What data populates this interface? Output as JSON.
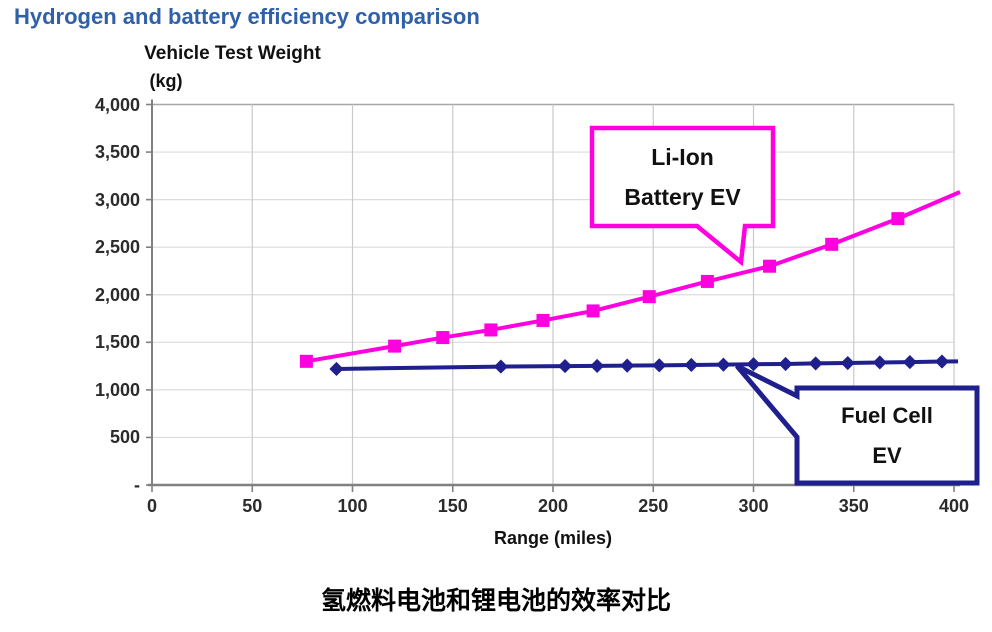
{
  "page_title": "Hydrogen and battery efficiency comparison",
  "caption": "氢燃料电池和锂电池的效率对比",
  "chart_data": {
    "type": "line",
    "title": "Hydrogen and battery efficiency comparison",
    "grid": true,
    "background": "#ffffff",
    "x_axis": {
      "label": "Range (miles)",
      "min": 0,
      "max": 400,
      "step": 50,
      "tick_labels": [
        "0",
        "50",
        "100",
        "150",
        "200",
        "250",
        "300",
        "350",
        "400"
      ]
    },
    "y_axis": {
      "label_line1": "Vehicle Test Weight",
      "label_line2": "(kg)",
      "min": 0,
      "max": 4000,
      "step": 500,
      "tick_labels": [
        "-",
        "500",
        "1,000",
        "1,500",
        "2,000",
        "2,500",
        "3,000",
        "3,500",
        "4,000"
      ]
    },
    "series": [
      {
        "name": "Li-Ion Battery EV",
        "color": "#FF00E0",
        "marker": "square",
        "points": [
          [
            77,
            1300
          ],
          [
            121,
            1460
          ],
          [
            145,
            1550
          ],
          [
            169,
            1630
          ],
          [
            195,
            1730
          ],
          [
            220,
            1830
          ],
          [
            248,
            1980
          ],
          [
            277,
            2140
          ],
          [
            308,
            2300
          ],
          [
            339,
            2530
          ],
          [
            372,
            2800
          ]
        ],
        "line_end": [
          403,
          3080
        ]
      },
      {
        "name": "Fuel Cell EV",
        "color": "#1F1F8E",
        "marker": "diamond",
        "points": [
          [
            92,
            1220
          ],
          [
            174,
            1245
          ],
          [
            206,
            1250
          ],
          [
            222,
            1252
          ],
          [
            237,
            1255
          ],
          [
            253,
            1258
          ],
          [
            269,
            1262
          ],
          [
            285,
            1265
          ],
          [
            300,
            1270
          ],
          [
            316,
            1272
          ],
          [
            331,
            1278
          ],
          [
            347,
            1282
          ],
          [
            363,
            1288
          ],
          [
            378,
            1292
          ],
          [
            394,
            1298
          ]
        ],
        "line_end": [
          402,
          1300
        ]
      }
    ],
    "annotations": [
      {
        "target": "Li-Ion Battery EV",
        "line1": "Li-Ion",
        "line2": "Battery EV",
        "border_color": "#FF00E0"
      },
      {
        "target": "Fuel Cell EV",
        "line1": "Fuel Cell",
        "line2": "EV",
        "border_color": "#1F1F8E"
      }
    ],
    "colors": {
      "title_blue": "#3060A8",
      "grid_horizontal": "#DCDCDC",
      "grid_vertical": "#C9C9C9",
      "axis": "#808080",
      "plot_frame_top": "#A6A6A6"
    }
  }
}
